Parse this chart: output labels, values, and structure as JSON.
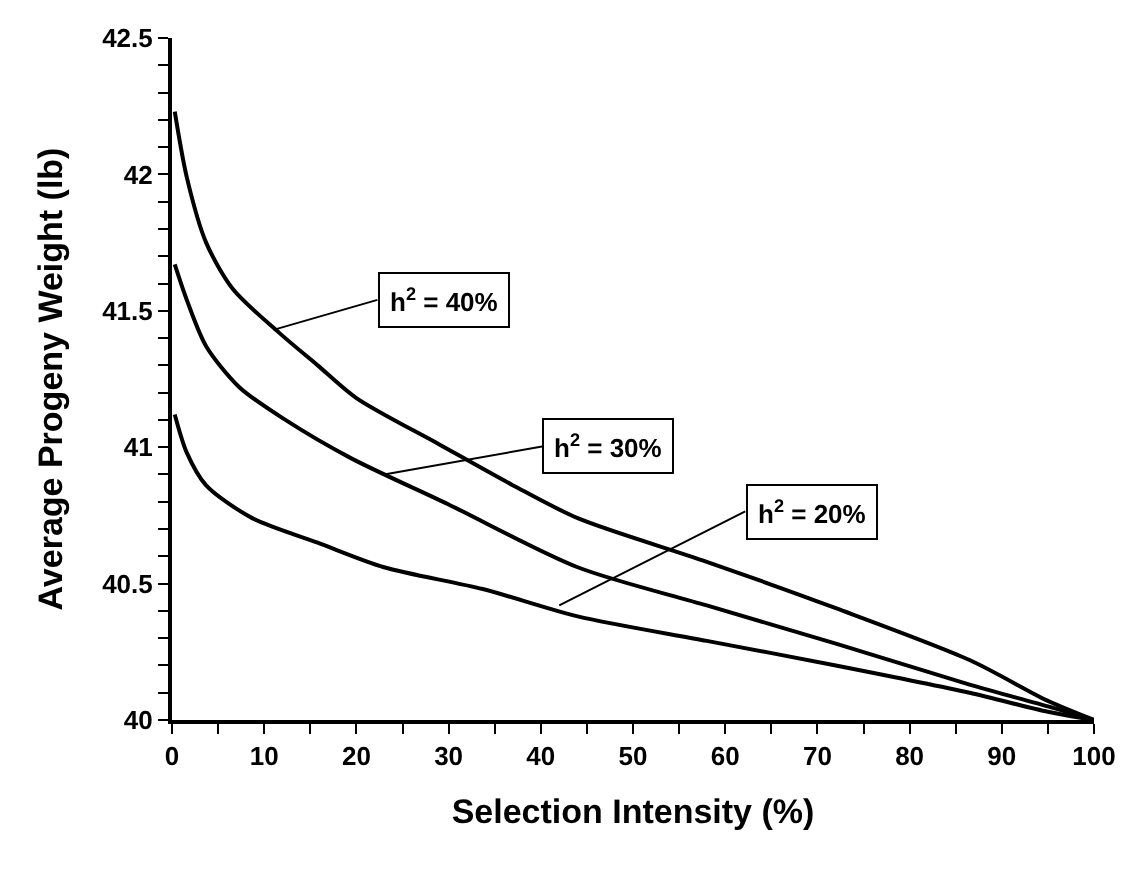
{
  "chart_data": {
    "type": "line",
    "xlabel": "Selection Intensity (%)",
    "ylabel": "Average Progeny Weight (lb)",
    "series": [
      {
        "color": "#000000",
        "x": [
          0.3,
          1.6,
          3.7,
          6.6,
          11.6,
          15.8,
          20,
          29,
          37,
          44,
          58,
          72,
          86.5,
          95,
          100
        ],
        "values": [
          42.23,
          41.99,
          41.75,
          41.58,
          41.42,
          41.3,
          41.18,
          41.01,
          40.86,
          40.74,
          40.58,
          40.41,
          40.22,
          40.07,
          40
        ]
      },
      {
        "color": "#000000",
        "x": [
          0.3,
          1.6,
          3.7,
          7.3,
          12.3,
          19.4,
          30,
          44,
          58,
          72,
          86.5,
          95,
          100
        ],
        "values": [
          41.67,
          41.54,
          41.37,
          41.22,
          41.1,
          40.96,
          40.79,
          40.56,
          40.42,
          40.28,
          40.13,
          40.05,
          40
        ]
      },
      {
        "color": "#000000",
        "x": [
          0.3,
          1.6,
          3.7,
          8.7,
          15.8,
          23,
          33.7,
          44,
          58,
          72,
          86.5,
          95,
          100
        ],
        "values": [
          41.12,
          40.98,
          40.86,
          40.74,
          40.65,
          40.56,
          40.48,
          40.38,
          40.29,
          40.2,
          40.1,
          40.03,
          40
        ]
      }
    ],
    "annotations": [
      {
        "text": "h$^{2}$ = 40%",
        "x": 11,
        "y": 41.43
      },
      {
        "text": "h$^{2}$ = 30%",
        "x": 23,
        "y": 40.9
      },
      {
        "text": "h$^{2}$ = 20%",
        "x": 42,
        "y": 40.42
      }
    ],
    "xlim": [
      0,
      100
    ],
    "ylim": [
      40,
      42.5
    ],
    "xticks": [
      0,
      {
        "value": 5,
        "label": null
      },
      10,
      {
        "value": 15,
        "label": null
      },
      20,
      {
        "value": 25,
        "label": null
      },
      30,
      {
        "value": 35,
        "label": null
      },
      40,
      {
        "value": 45,
        "label": null
      },
      50,
      {
        "value": 55,
        "label": null
      },
      60,
      {
        "value": 65,
        "label": null
      },
      70,
      {
        "value": 75,
        "label": null
      },
      80,
      {
        "value": 85,
        "label": null
      },
      90,
      {
        "value": 95,
        "label": null
      },
      100
    ],
    "yticks": [
      40,
      {
        "value": 40.1,
        "label": null
      },
      {
        "value": 40.2,
        "label": null
      },
      {
        "value": 40.3,
        "label": null
      },
      {
        "value": 40.4,
        "label": null
      },
      40.5,
      {
        "value": 40.6,
        "label": null
      },
      {
        "value": 40.7,
        "label": null
      },
      {
        "value": 40.8,
        "label": null
      },
      {
        "value": 40.9,
        "label": null
      },
      41,
      {
        "value": 41.1,
        "label": null
      },
      {
        "value": 41.2,
        "label": null
      },
      {
        "value": 41.3,
        "label": null
      },
      {
        "value": 41.4,
        "label": null
      },
      41.5,
      {
        "value": 41.6,
        "label": null
      },
      {
        "value": 41.7,
        "label": null
      },
      {
        "value": 41.8,
        "label": null
      },
      {
        "value": 41.9,
        "label": null
      },
      42,
      {
        "value": 42.1,
        "label": null
      },
      {
        "value": 42.2,
        "label": null
      },
      {
        "value": 42.3,
        "label": null
      },
      {
        "value": 42.4,
        "label": null
      },
      42.5
    ],
    "legend": false,
    "marker": "none",
    "line_style": "solid"
  }
}
